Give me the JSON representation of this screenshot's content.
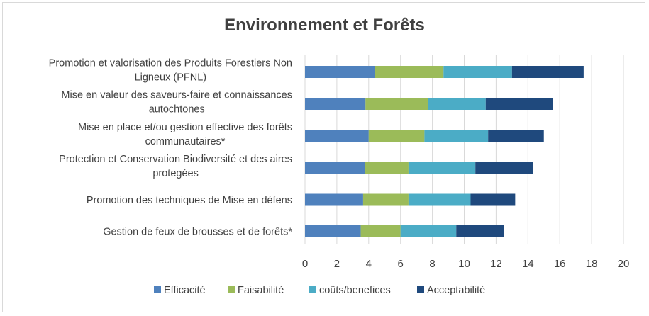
{
  "chart_data": {
    "type": "bar",
    "orientation": "horizontal",
    "stacked": true,
    "title": "Environnement et Forêts",
    "categories": [
      [
        "Promotion et valorisation des Produits Forestiers Non",
        "Ligneux (PFNL)"
      ],
      [
        "Mise en valeur des saveurs-faire et connaissances",
        "autochtones"
      ],
      [
        "Mise en place et/ou gestion effective des forêts",
        "communautaires*"
      ],
      [
        "Protection et Conservation Biodiversité et des aires",
        "protegées"
      ],
      [
        "Promotion des techniques de Mise en défens"
      ],
      [
        "Gestion de feux de brousses  et de  forêts*"
      ]
    ],
    "series": [
      {
        "name": "Efficacité",
        "color": "#4f81bd",
        "values": [
          4.4,
          3.8,
          4.0,
          3.75,
          3.65,
          3.5
        ]
      },
      {
        "name": "Faisabilité",
        "color": "#9bbb59",
        "values": [
          4.3,
          3.95,
          3.5,
          2.75,
          2.85,
          2.5
        ]
      },
      {
        "name": "coûts/benefices",
        "color": "#4bacc6",
        "values": [
          4.3,
          3.6,
          4.0,
          4.2,
          3.9,
          3.5
        ]
      },
      {
        "name": "Acceptabilité",
        "color": "#1f497d",
        "values": [
          4.5,
          4.2,
          3.5,
          3.6,
          2.8,
          3.0
        ]
      }
    ],
    "xlim": [
      0,
      20
    ],
    "xticks": [
      "0",
      "2",
      "4",
      "6",
      "8",
      "10",
      "12",
      "14",
      "16",
      "18",
      "20"
    ],
    "grid": true,
    "legend_position": "bottom"
  }
}
